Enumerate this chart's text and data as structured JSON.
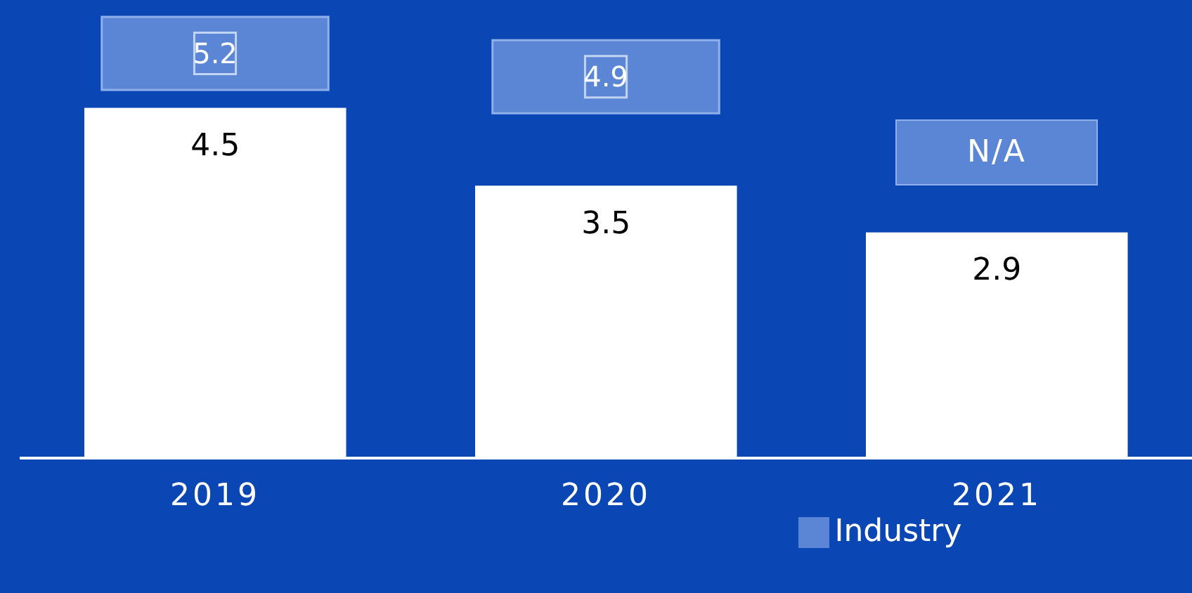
{
  "chart_data": {
    "type": "bar",
    "categories": [
      "2019",
      "2020",
      "2021"
    ],
    "series": [
      {
        "color": "#ffffff",
        "values": [
          4.5,
          3.5,
          2.9
        ]
      },
      {
        "name": "Industry",
        "type": "scatter",
        "color": "#5b86d6",
        "values": [
          5.2,
          4.9,
          null
        ]
      }
    ],
    "data_labels": true,
    "marker": "square",
    "grid": false,
    "legend": "bottom",
    "annotations": [
      "N/A"
    ]
  }
}
